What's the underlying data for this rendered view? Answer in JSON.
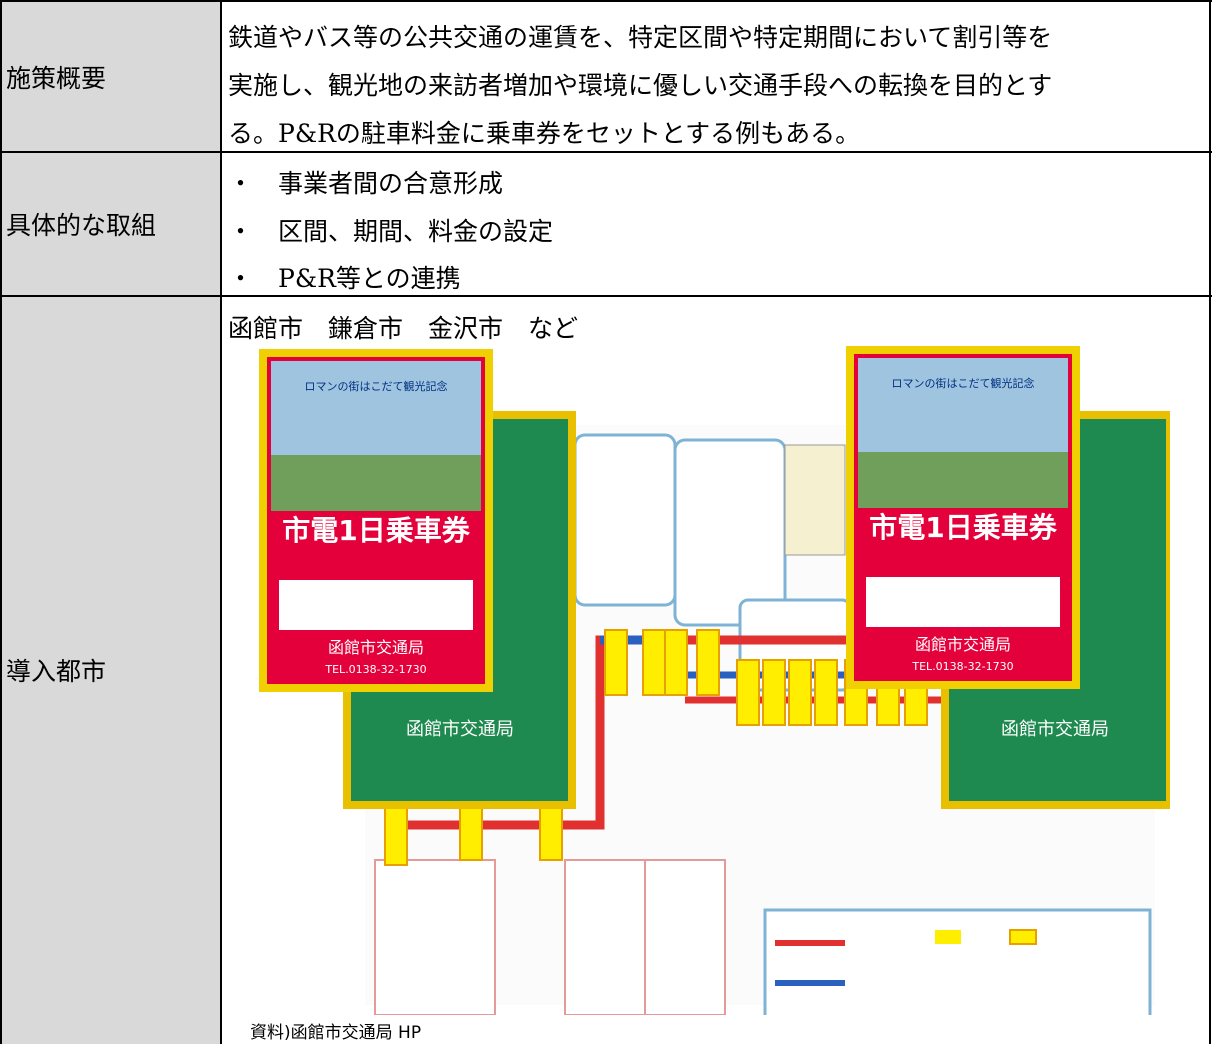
{
  "table": {
    "rows": [
      {
        "label": "施策概要",
        "lines": [
          "鉄道やバス等の公共交通の運賃を、特定区間や特定期間において割引等を",
          "実施し、観光地の来訪者増加や環境に優しい交通手段への転換を目的とす",
          "る。P&Rの駐車料金に乗車券をセットとする例もある。"
        ]
      },
      {
        "label": "具体的な取組",
        "lines": [
          "・　事業者間の合意形成",
          "・　区間、期間、料金の設定",
          "・　P&R等との連携"
        ]
      },
      {
        "label": "導入都市",
        "lines": [
          "函館市　鎌倉市　金沢市　など"
        ],
        "figure": {
          "ticket_header": "ロマンの街はこだて観光記念",
          "ticket_title": "市電1日乗車券",
          "ticket_issuer": "函館市交通局",
          "ticket_tel": "TEL.0138-32-1730"
        },
        "source": "資料)函館市交通局 HP"
      }
    ]
  }
}
